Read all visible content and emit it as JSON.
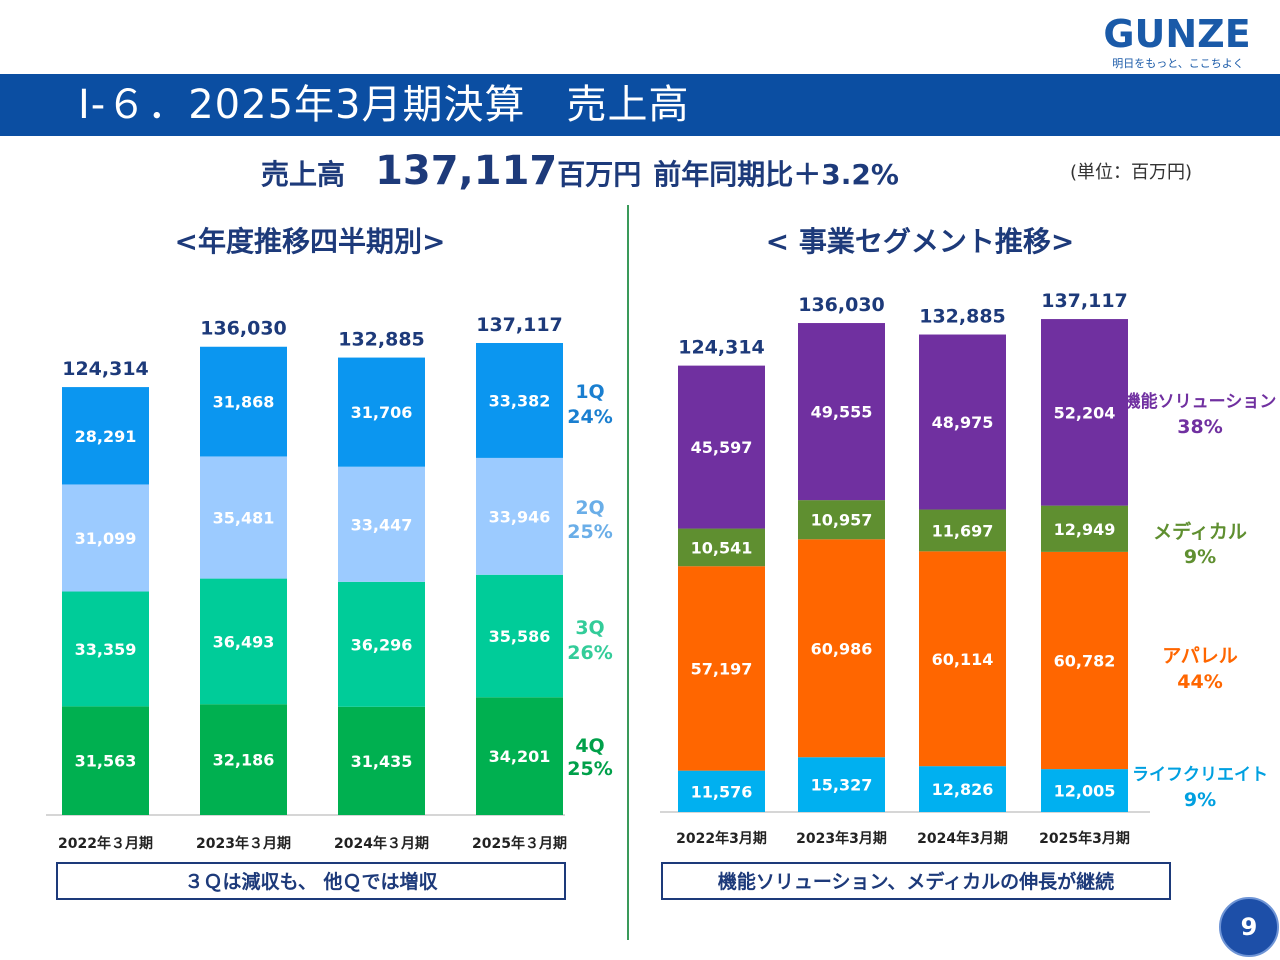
{
  "header": {
    "title": "Ⅰ-６．2025年3月期決算　売上高",
    "logo": "GUNZE",
    "tagline": "明日をもっと、ここちよく"
  },
  "headline": {
    "label": "売上高",
    "value": "137,117",
    "unit": "百万円",
    "yoy": "前年同期比＋3.2%"
  },
  "unit_note": "(単位：百万円)",
  "sections": {
    "left_title": "<年度推移四半期別>",
    "right_title": "< 事業セグメント推移>",
    "left_note": "３Ｑは減収も、 他Ｑでは増収",
    "right_note": "機能ソリューション、メディカルの伸長が継続"
  },
  "page_number": "9",
  "colors": {
    "title_band": "#0b4ea2",
    "q1": "#0b96f0",
    "q2": "#9ccbff",
    "q3": "#00cc99",
    "q4": "#00b050",
    "func": "#7030a0",
    "medical": "#5f8f30",
    "apparel": "#ff6600",
    "life": "#00b0f0"
  },
  "chart_data": [
    {
      "type": "bar",
      "stacked": true,
      "title": "<年度推移四半期別>",
      "categories": [
        "2022年３月期",
        "2023年３月期",
        "2024年３月期",
        "2025年３月期"
      ],
      "totals": [
        "124,314",
        "136,030",
        "132,885",
        "137,117"
      ],
      "series": [
        {
          "name": "4Q",
          "share": "25%",
          "color": "#00b050",
          "label_color": "#00a04a",
          "values": [
            31563,
            32186,
            31435,
            34201
          ]
        },
        {
          "name": "3Q",
          "share": "26%",
          "color": "#00cc99",
          "label_color": "#33cc99",
          "values": [
            33359,
            36493,
            36296,
            35586
          ]
        },
        {
          "name": "2Q",
          "share": "25%",
          "color": "#9ccbff",
          "label_color": "#6aaee8",
          "values": [
            31099,
            35481,
            33447,
            33946
          ]
        },
        {
          "name": "1Q",
          "share": "24%",
          "color": "#0b96f0",
          "label_color": "#1a7fd0",
          "values": [
            28291,
            31868,
            31706,
            33382
          ]
        }
      ],
      "ylim": [
        0,
        150000
      ],
      "grid": false
    },
    {
      "type": "bar",
      "stacked": true,
      "title": "< 事業セグメント推移>",
      "categories": [
        "2022年3月期",
        "2023年3月期",
        "2024年3月期",
        "2025年3月期"
      ],
      "totals": [
        "124,314",
        "136,030",
        "132,885",
        "137,117"
      ],
      "series": [
        {
          "name": "ライフクリエイト",
          "share": "9%",
          "color": "#00b0f0",
          "label_color": "#00a0e0",
          "values": [
            11576,
            15327,
            12826,
            12005
          ]
        },
        {
          "name": "アパレル",
          "share": "44%",
          "color": "#ff6600",
          "label_color": "#ff6600",
          "values": [
            57197,
            60986,
            60114,
            60782
          ]
        },
        {
          "name": "メディカル",
          "share": "9%",
          "color": "#5f8f30",
          "label_color": "#5f8f30",
          "values": [
            10541,
            10957,
            11697,
            12949
          ]
        },
        {
          "name": "機能ソリューション",
          "share": "38%",
          "color": "#7030a0",
          "label_color": "#7030a0",
          "values": [
            45597,
            49555,
            48975,
            52204
          ]
        }
      ],
      "ylim": [
        0,
        150000
      ],
      "grid": false
    }
  ]
}
